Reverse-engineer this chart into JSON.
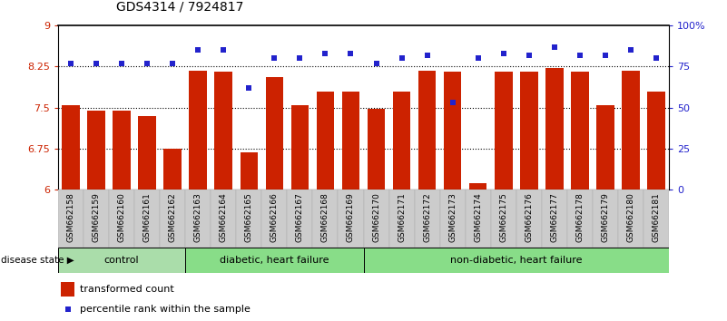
{
  "title": "GDS4314 / 7924817",
  "samples": [
    "GSM662158",
    "GSM662159",
    "GSM662160",
    "GSM662161",
    "GSM662162",
    "GSM662163",
    "GSM662164",
    "GSM662165",
    "GSM662166",
    "GSM662167",
    "GSM662168",
    "GSM662169",
    "GSM662170",
    "GSM662171",
    "GSM662172",
    "GSM662173",
    "GSM662174",
    "GSM662175",
    "GSM662176",
    "GSM662177",
    "GSM662178",
    "GSM662179",
    "GSM662180",
    "GSM662181"
  ],
  "bar_values": [
    7.55,
    7.45,
    7.45,
    7.35,
    6.75,
    8.18,
    8.15,
    6.68,
    8.05,
    7.55,
    7.8,
    7.8,
    7.48,
    7.8,
    8.18,
    8.15,
    6.12,
    8.15,
    8.15,
    8.22,
    8.15,
    7.55,
    8.18,
    7.8
  ],
  "dot_values": [
    77,
    77,
    77,
    77,
    77,
    85,
    85,
    62,
    80,
    80,
    83,
    83,
    77,
    80,
    82,
    53,
    80,
    83,
    82,
    87,
    82,
    82,
    85,
    80
  ],
  "group_boundaries": [
    0,
    5,
    12,
    24
  ],
  "group_labels": [
    "control",
    "diabetic, heart failure",
    "non-diabetic, heart failure"
  ],
  "group_colors": [
    "#aaddaa",
    "#88dd88",
    "#88dd88"
  ],
  "ylim_left": [
    6,
    9
  ],
  "ylim_right": [
    0,
    100
  ],
  "yticks_left": [
    6,
    6.75,
    7.5,
    8.25,
    9
  ],
  "yticks_right": [
    0,
    25,
    50,
    75,
    100
  ],
  "ytick_labels_right": [
    "0",
    "25",
    "50",
    "75",
    "100%"
  ],
  "bar_color": "#cc2200",
  "dot_color": "#2222cc",
  "dotted_lines": [
    6.75,
    7.5,
    8.25
  ],
  "legend_bar_label": "transformed count",
  "legend_dot_label": "percentile rank within the sample",
  "disease_state_label": "disease state",
  "bar_width": 0.7,
  "bg_color": "#ffffff",
  "tick_bg_color": "#cccccc"
}
